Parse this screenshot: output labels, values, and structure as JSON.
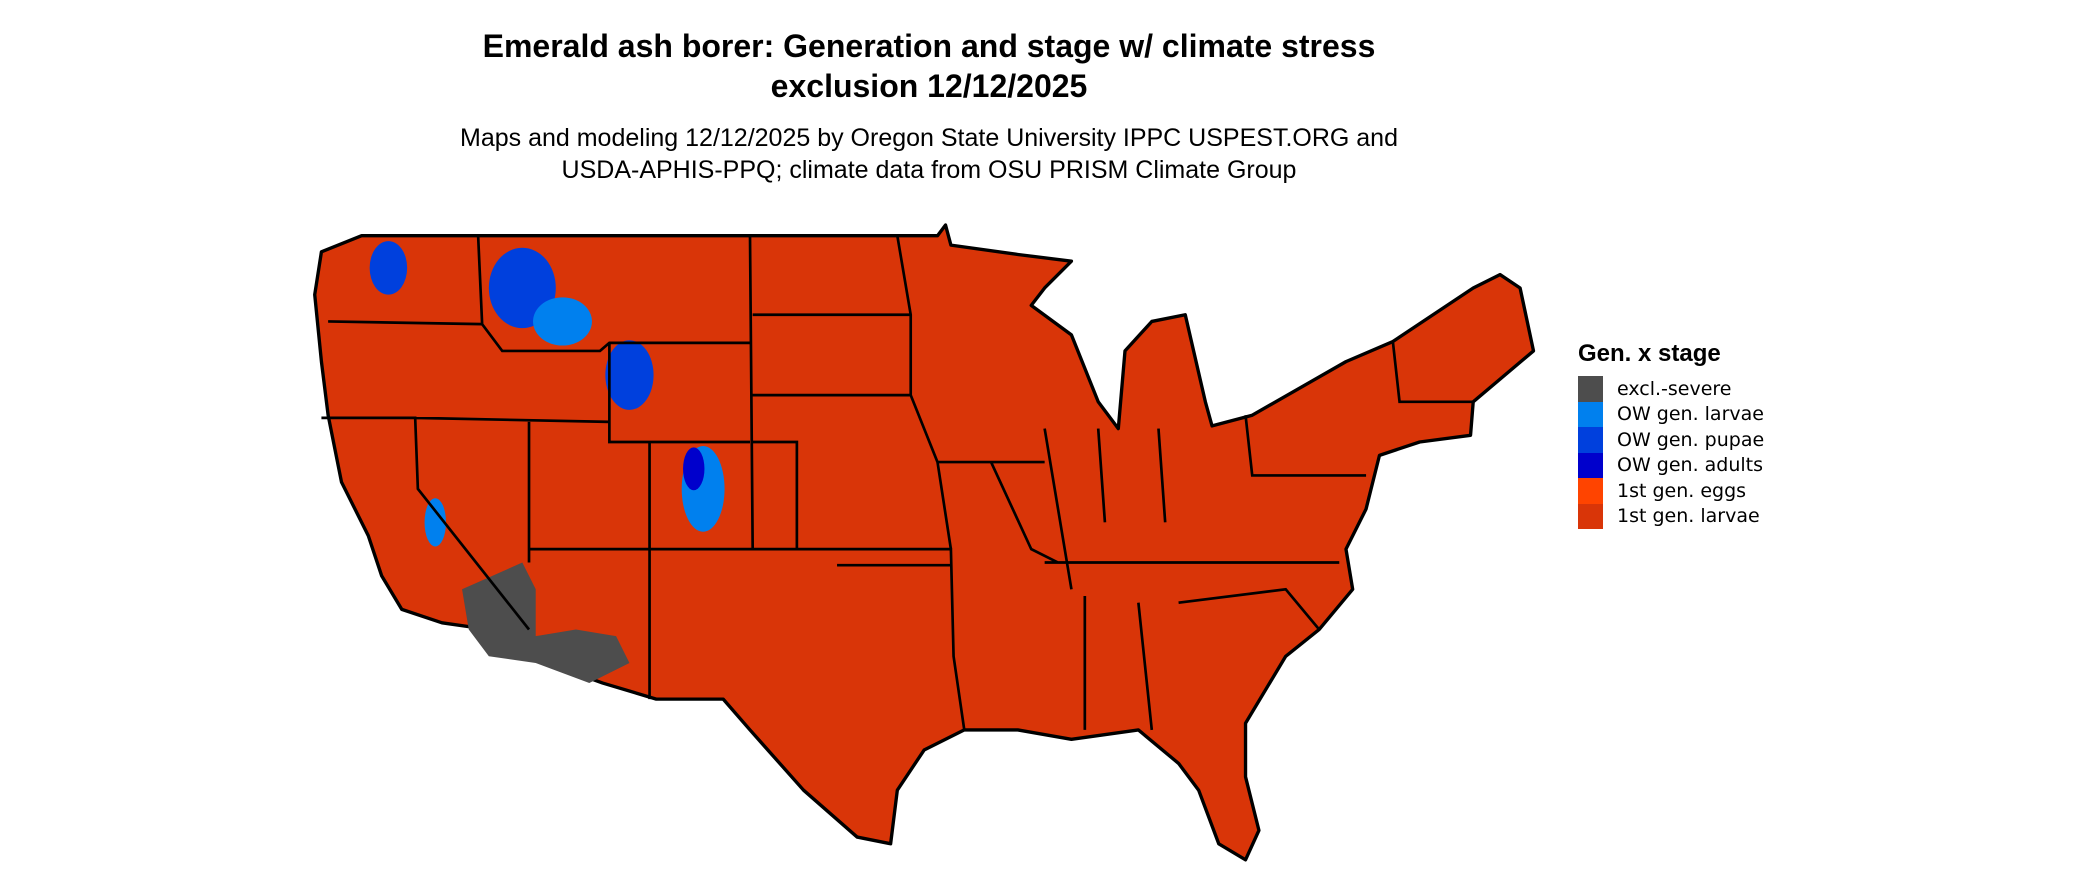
{
  "title_lines": [
    "Emerald ash borer: Generation and stage w/ climate stress",
    "exclusion 12/12/2025"
  ],
  "subtitle_lines": [
    "Maps and modeling 12/12/2025 by Oregon State University IPPC USPEST.ORG and",
    "USDA-APHIS-PPQ; climate data from OSU PRISM Climate Group"
  ],
  "legend": {
    "title": "Gen. x stage",
    "items": [
      {
        "label": "excl.-severe",
        "color": "#4d4d4d"
      },
      {
        "label": "OW gen. larvae",
        "color": "#0080ee"
      },
      {
        "label": "OW gen. pupae",
        "color": "#0040dd"
      },
      {
        "label": "OW gen. adults",
        "color": "#0000cc"
      },
      {
        "label": "1st gen. eggs",
        "color": "#ff4400"
      },
      {
        "label": "1st gen. larvae",
        "color": "#d93508"
      }
    ]
  },
  "map": {
    "region": "Contiguous United States",
    "dominant_class": "1st gen. larvae",
    "border_color": "#000000"
  }
}
